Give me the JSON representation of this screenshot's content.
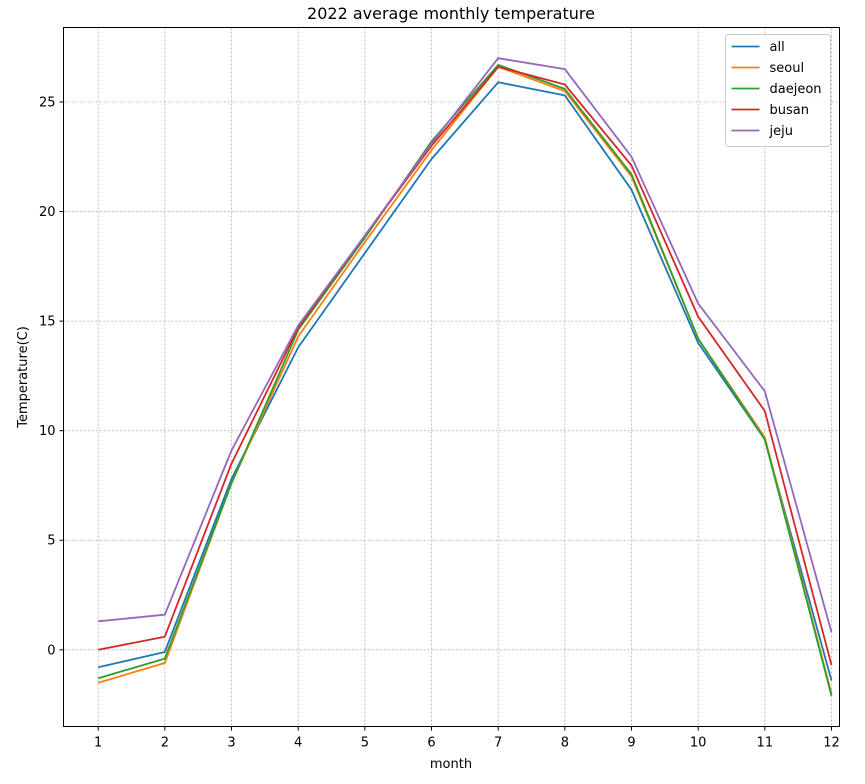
{
  "chart_data": {
    "type": "line",
    "title": "2022 average monthly temperature",
    "xlabel": "month",
    "ylabel": "Temperature(C)",
    "x": [
      1,
      2,
      3,
      4,
      5,
      6,
      7,
      8,
      9,
      10,
      11,
      12
    ],
    "x_tick_labels": [
      "1",
      "2",
      "3",
      "4",
      "5",
      "6",
      "7",
      "8",
      "9",
      "10",
      "11",
      "12"
    ],
    "y_ticks": [
      0,
      5,
      10,
      15,
      20,
      25
    ],
    "y_tick_labels": [
      "0",
      "5",
      "10",
      "15",
      "20",
      "25"
    ],
    "xlim": [
      0.48,
      12.12
    ],
    "ylim": [
      -3.5,
      28.4
    ],
    "grid": true,
    "legend_position": "top-right",
    "series": [
      {
        "name": "all",
        "color": "#1f77b4",
        "values": [
          -0.8,
          -0.1,
          7.8,
          13.8,
          18.1,
          22.4,
          25.9,
          25.3,
          21.0,
          14.0,
          9.6,
          -1.4
        ]
      },
      {
        "name": "seoul",
        "color": "#ff7f0e",
        "values": [
          -1.5,
          -0.6,
          7.6,
          14.3,
          18.6,
          22.8,
          26.6,
          25.5,
          21.6,
          14.2,
          9.7,
          -2.0
        ]
      },
      {
        "name": "daejeon",
        "color": "#2ca02c",
        "values": [
          -1.3,
          -0.4,
          7.6,
          14.6,
          18.8,
          23.2,
          26.7,
          25.6,
          21.7,
          14.2,
          9.6,
          -2.1
        ]
      },
      {
        "name": "busan",
        "color": "#d62728",
        "values": [
          0.0,
          0.6,
          8.5,
          14.7,
          18.9,
          23.0,
          26.6,
          25.8,
          22.1,
          15.2,
          10.9,
          -0.7
        ]
      },
      {
        "name": "jeju",
        "color": "#9467bd",
        "values": [
          1.3,
          1.6,
          9.1,
          14.8,
          18.9,
          23.1,
          27.0,
          26.5,
          22.5,
          15.8,
          11.8,
          0.8
        ]
      }
    ]
  }
}
